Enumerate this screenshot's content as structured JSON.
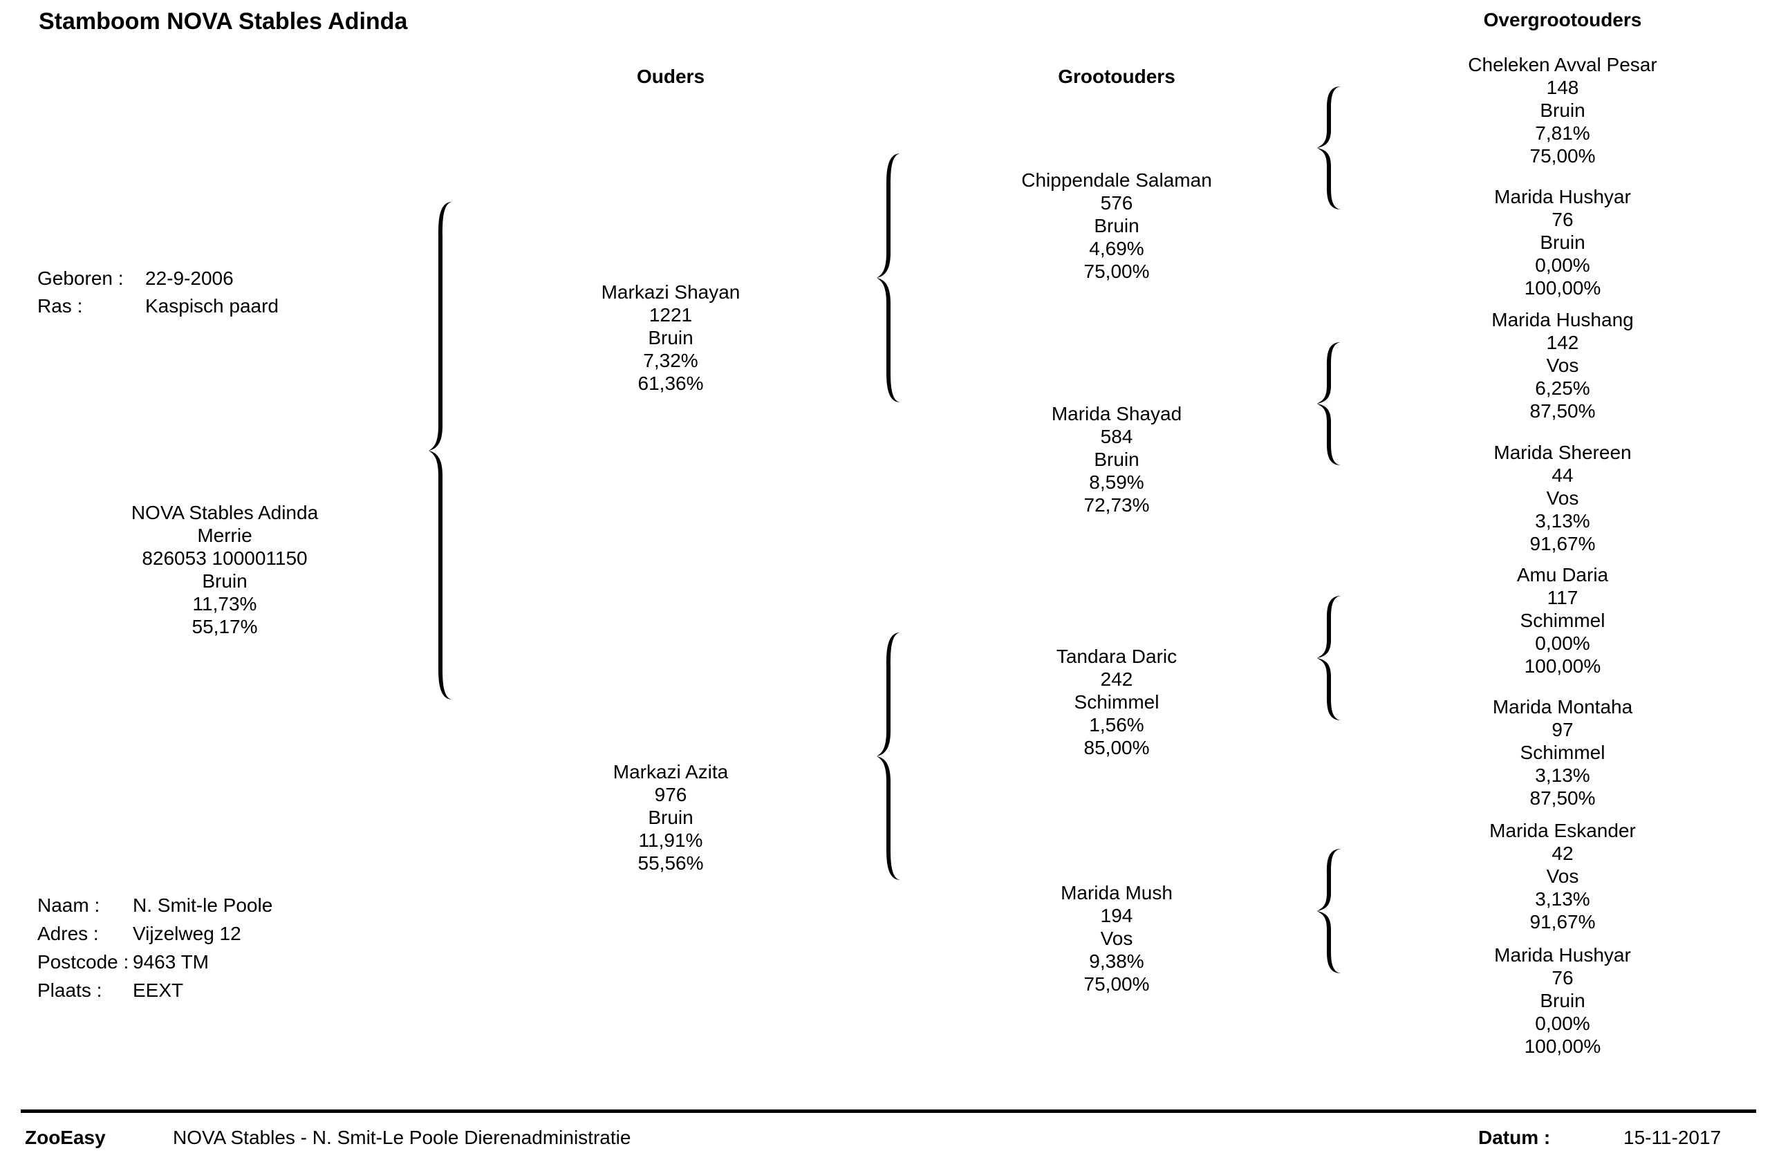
{
  "title": "Stamboom NOVA Stables Adinda",
  "headers": {
    "parents": "Ouders",
    "grandparents": "Grootouders",
    "great_grandparents": "Overgrootouders"
  },
  "info": {
    "born_label": "Geboren :",
    "born_value": "22-9-2006",
    "breed_label": "Ras :",
    "breed_value": "Kaspisch paard"
  },
  "subject": {
    "name": "NOVA Stables Adinda",
    "sex": "Merrie",
    "chip": "826053 100001150",
    "color": "Bruin",
    "p1": "11,73%",
    "p2": "55,17%"
  },
  "parents": [
    {
      "name": "Markazi Shayan",
      "id": "1221",
      "color": "Bruin",
      "p1": "7,32%",
      "p2": "61,36%"
    },
    {
      "name": "Markazi Azita",
      "id": "976",
      "color": "Bruin",
      "p1": "11,91%",
      "p2": "55,56%"
    }
  ],
  "grandparents": [
    {
      "name": "Chippendale Salaman",
      "id": "576",
      "color": "Bruin",
      "p1": "4,69%",
      "p2": "75,00%"
    },
    {
      "name": "Marida Shayad",
      "id": "584",
      "color": "Bruin",
      "p1": "8,59%",
      "p2": "72,73%"
    },
    {
      "name": "Tandara Daric",
      "id": "242",
      "color": "Schimmel",
      "p1": "1,56%",
      "p2": "85,00%"
    },
    {
      "name": "Marida Mush",
      "id": "194",
      "color": "Vos",
      "p1": "9,38%",
      "p2": "75,00%"
    }
  ],
  "great_grandparents": [
    {
      "name": "Cheleken Avval Pesar",
      "id": "148",
      "color": "Bruin",
      "p1": "7,81%",
      "p2": "75,00%"
    },
    {
      "name": "Marida Hushyar",
      "id": "76",
      "color": "Bruin",
      "p1": "0,00%",
      "p2": "100,00%"
    },
    {
      "name": "Marida Hushang",
      "id": "142",
      "color": "Vos",
      "p1": "6,25%",
      "p2": "87,50%"
    },
    {
      "name": "Marida Shereen",
      "id": "44",
      "color": "Vos",
      "p1": "3,13%",
      "p2": "91,67%"
    },
    {
      "name": "Amu Daria",
      "id": "117",
      "color": "Schimmel",
      "p1": "0,00%",
      "p2": "100,00%"
    },
    {
      "name": "Marida Montaha",
      "id": "97",
      "color": "Schimmel",
      "p1": "3,13%",
      "p2": "87,50%"
    },
    {
      "name": "Marida Eskander",
      "id": "42",
      "color": "Vos",
      "p1": "3,13%",
      "p2": "91,67%"
    },
    {
      "name": "Marida Hushyar",
      "id": "76",
      "color": "Bruin",
      "p1": "0,00%",
      "p2": "100,00%"
    }
  ],
  "owner": {
    "name_label": "Naam :",
    "name_value": "N.  Smit-le Poole",
    "address_label": "Adres :",
    "address_value": "Vijzelweg 12",
    "postcode_label": "Postcode :",
    "postcode_value": "9463 TM",
    "city_label": "Plaats :",
    "city_value": "EEXT"
  },
  "footer": {
    "app": "ZooEasy",
    "org": "NOVA Stables - N. Smit-Le Poole Dierenadministratie",
    "date_label": "Datum :",
    "date_value": "15-11-2017"
  }
}
